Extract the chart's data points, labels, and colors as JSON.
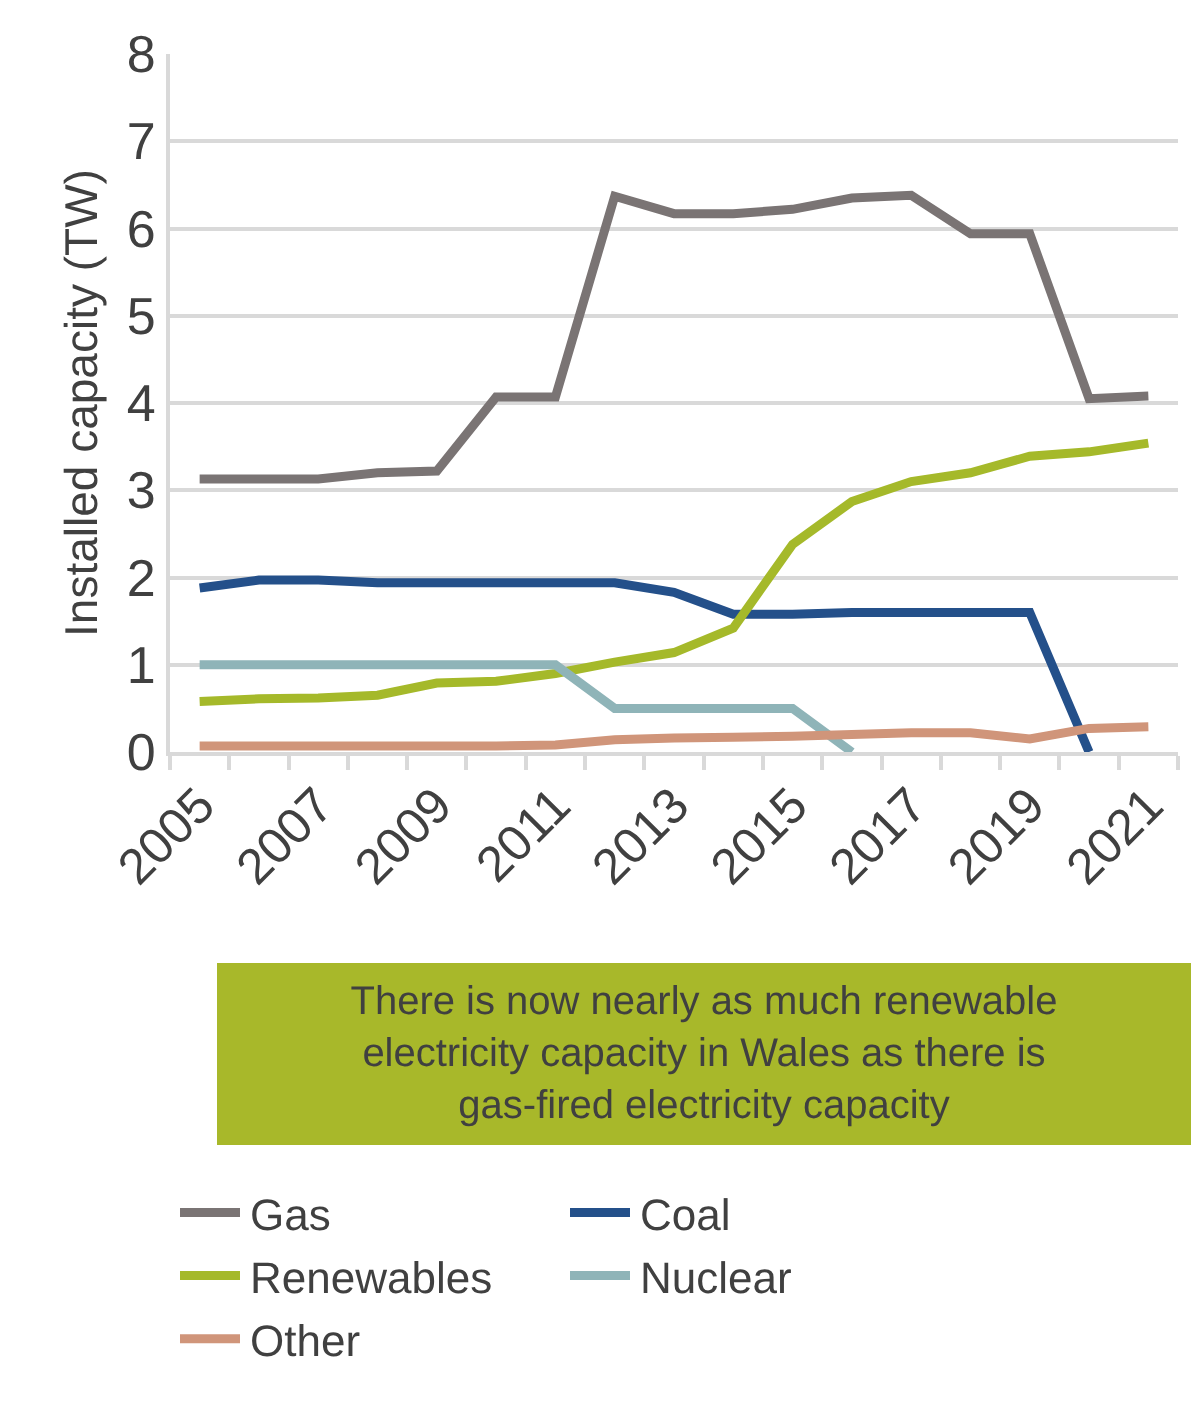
{
  "chart_data": {
    "type": "line",
    "ylabel": "Installed capacity (TW)",
    "categories": [
      "2005",
      null,
      "2007",
      null,
      "2009",
      null,
      "2011",
      null,
      "2013",
      null,
      "2015",
      null,
      "2017",
      null,
      "2019",
      null,
      "2021"
    ],
    "series": [
      {
        "name": "Gas",
        "color": "#7a7474",
        "values": [
          3.13,
          3.13,
          3.13,
          3.2,
          3.22,
          4.07,
          4.07,
          6.37,
          6.17,
          6.17,
          6.22,
          6.35,
          6.38,
          5.94,
          5.94,
          4.05,
          4.08
        ]
      },
      {
        "name": "Coal",
        "color": "#24508a",
        "values": [
          1.88,
          1.97,
          1.97,
          1.94,
          1.94,
          1.94,
          1.94,
          1.94,
          1.83,
          1.58,
          1.58,
          1.6,
          1.6,
          1.6,
          1.6,
          0,
          null
        ]
      },
      {
        "name": "Renewables",
        "color": "#a5b92a",
        "values": [
          0.58,
          0.61,
          0.62,
          0.65,
          0.79,
          0.81,
          0.9,
          1.03,
          1.14,
          1.42,
          2.38,
          2.87,
          3.1,
          3.2,
          3.39,
          3.44,
          3.54
        ]
      },
      {
        "name": "Nuclear",
        "color": "#8fb4b8",
        "values": [
          1.0,
          1.0,
          1.0,
          1.0,
          1.0,
          1.0,
          1.0,
          0.5,
          0.5,
          0.5,
          0.5,
          0,
          null,
          null,
          null,
          null,
          null
        ]
      },
      {
        "name": "Other",
        "color": "#d0957a",
        "values": [
          0.07,
          0.07,
          0.07,
          0.07,
          0.07,
          0.07,
          0.08,
          0.14,
          0.16,
          0.17,
          0.18,
          0.2,
          0.22,
          0.22,
          0.15,
          0.27,
          0.29
        ]
      }
    ],
    "ylim": [
      0,
      8
    ],
    "yticks": [
      0,
      1,
      2,
      3,
      4,
      5,
      6,
      7,
      8
    ],
    "grid": "y",
    "legend": "bottom",
    "marker": "none",
    "line_style": "solid",
    "annotations": [
      "There is now nearly as much renewable electricity capacity in Wales as there is gas-fired electricity capacity"
    ]
  }
}
